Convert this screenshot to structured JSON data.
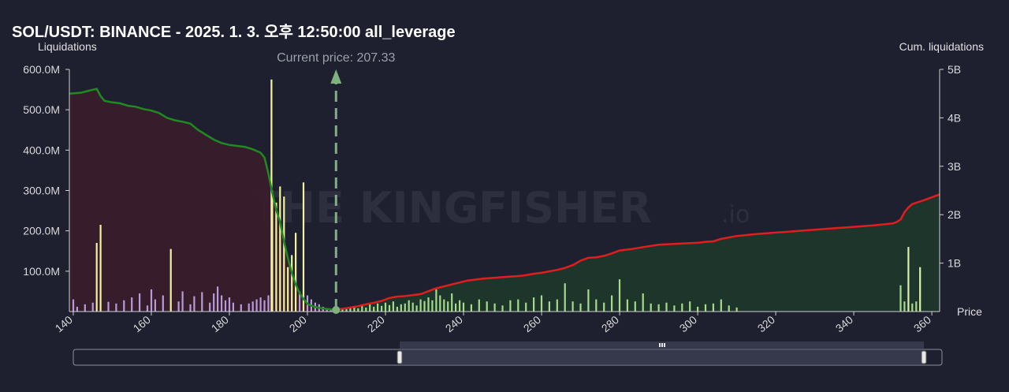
{
  "chart_data": {
    "type": "bar",
    "title": "SOL/USDT: BINANCE - 2025. 1. 3. 오후 12:50:00 all_leverage",
    "ylabel": "Liquidations",
    "y2label": "Cum. liquidations",
    "xlabel": "Price",
    "current_price_label": "Current price: 207.33",
    "current_price": 207.33,
    "xlim": [
      139,
      362
    ],
    "ylim": [
      0,
      600
    ],
    "y2lim": [
      0,
      5000
    ],
    "x_ticks": [
      140,
      160,
      180,
      200,
      220,
      240,
      260,
      280,
      300,
      320,
      340,
      360
    ],
    "y_ticks": [
      {
        "value": 100,
        "label": "100.0M"
      },
      {
        "value": 200,
        "label": "200.0M"
      },
      {
        "value": 300,
        "label": "300.0M"
      },
      {
        "value": 400,
        "label": "400.0M"
      },
      {
        "value": 500,
        "label": "500.0M"
      },
      {
        "value": 600,
        "label": "600.0M"
      }
    ],
    "y2_ticks": [
      {
        "value": 1000,
        "label": "1B"
      },
      {
        "value": 2000,
        "label": "2B"
      },
      {
        "value": 3000,
        "label": "3B"
      },
      {
        "value": 4000,
        "label": "4B"
      },
      {
        "value": 5000,
        "label": "5B"
      }
    ],
    "watermark_main": "THE KINGFISHER",
    "watermark_suffix": ".io",
    "colors": {
      "background": "#1e2030",
      "short_bars": "#b79bd8",
      "short_bars_tall": "#f1f3a0",
      "long_bars": "#a6d98a",
      "long_bars_tall": "#d8f0a8",
      "cum_left_line": "#1f8a1f",
      "cum_left_fill": "#3a1d2b",
      "cum_right_line": "#e01e1e",
      "cum_right_fill": "#1f3a2a",
      "current_price": "#7fb07f"
    },
    "series": [
      {
        "name": "Liquidations (below price)",
        "x": [
          140,
          141,
          143,
          145,
          146,
          147,
          149,
          151,
          153,
          155,
          157,
          159,
          160,
          161,
          163,
          165,
          167,
          168,
          170,
          171,
          173,
          175,
          176,
          177,
          178,
          179,
          180,
          181,
          183,
          185,
          186,
          187,
          188,
          189,
          190,
          190.8,
          191,
          192,
          193,
          194,
          195,
          196,
          197,
          198,
          199,
          200,
          201,
          202,
          203,
          204,
          205,
          206
        ],
        "values": [
          30,
          12,
          18,
          22,
          170,
          215,
          24,
          20,
          28,
          35,
          45,
          15,
          55,
          30,
          40,
          155,
          25,
          50,
          18,
          38,
          48,
          22,
          45,
          62,
          40,
          28,
          35,
          22,
          18,
          20,
          25,
          30,
          35,
          28,
          40,
          575,
          300,
          270,
          310,
          285,
          110,
          140,
          195,
          50,
          320,
          40,
          30,
          22,
          18,
          12,
          8,
          5
        ]
      },
      {
        "name": "Liquidations (above price)",
        "x": [
          208,
          209,
          210,
          211,
          212,
          213,
          214,
          215,
          216,
          217,
          218,
          219,
          220,
          221,
          222,
          223,
          224,
          225,
          226,
          227,
          228,
          229,
          230,
          231,
          232,
          233,
          234,
          235,
          236,
          237,
          238,
          239,
          240,
          242,
          244,
          246,
          248,
          250,
          252,
          254,
          256,
          258,
          260,
          262,
          264,
          266,
          268,
          270,
          272,
          274,
          276,
          278,
          280,
          282,
          284,
          286,
          288,
          290,
          292,
          294,
          296,
          298,
          300,
          302,
          304,
          306,
          308,
          310,
          352,
          353,
          354,
          355,
          356,
          357
        ],
        "values": [
          5,
          8,
          6,
          10,
          12,
          8,
          15,
          10,
          18,
          12,
          20,
          14,
          22,
          16,
          25,
          12,
          18,
          20,
          28,
          22,
          15,
          30,
          26,
          35,
          28,
          55,
          40,
          30,
          25,
          45,
          20,
          28,
          22,
          18,
          30,
          25,
          20,
          15,
          28,
          30,
          22,
          35,
          40,
          25,
          30,
          70,
          25,
          20,
          55,
          30,
          22,
          40,
          80,
          30,
          25,
          45,
          20,
          18,
          22,
          15,
          20,
          25,
          12,
          18,
          20,
          30,
          15,
          10,
          65,
          25,
          160,
          20,
          25,
          110
        ]
      },
      {
        "name": "Cum. liquidations (below price)",
        "x": [
          139,
          142,
          144,
          145,
          146,
          147,
          148,
          150,
          152,
          154,
          156,
          158,
          160,
          162,
          164,
          166,
          168,
          170,
          172,
          174,
          176,
          178,
          180,
          182,
          184,
          186,
          188,
          189,
          190,
          191,
          192,
          193,
          194,
          195,
          196,
          197,
          198,
          199,
          200,
          201,
          202,
          203,
          204,
          205,
          206,
          207.33
        ],
        "values": [
          4500,
          4520,
          4560,
          4580,
          4600,
          4450,
          4350,
          4320,
          4300,
          4250,
          4230,
          4180,
          4150,
          4100,
          4000,
          3950,
          3920,
          3880,
          3750,
          3650,
          3550,
          3480,
          3440,
          3420,
          3400,
          3350,
          3280,
          3180,
          2850,
          2450,
          2100,
          1850,
          1450,
          1100,
          800,
          560,
          380,
          260,
          160,
          120,
          95,
          75,
          65,
          55,
          45,
          40
        ]
      },
      {
        "name": "Cum. liquidations (above price)",
        "x": [
          207.33,
          210,
          213,
          215,
          217,
          219,
          221,
          223,
          225,
          227,
          229,
          231,
          233,
          235,
          237,
          239,
          241,
          245,
          250,
          255,
          258,
          260,
          262,
          264,
          266,
          268,
          270,
          272,
          274,
          276,
          278,
          280,
          283,
          286,
          290,
          295,
          300,
          302,
          304,
          306,
          310,
          315,
          320,
          325,
          330,
          335,
          340,
          345,
          350,
          351,
          352,
          353,
          354,
          355,
          358,
          362
        ],
        "values": [
          40,
          70,
          110,
          150,
          180,
          220,
          280,
          310,
          320,
          340,
          360,
          420,
          480,
          520,
          560,
          600,
          640,
          680,
          710,
          740,
          780,
          800,
          830,
          860,
          900,
          960,
          1050,
          1110,
          1120,
          1150,
          1200,
          1260,
          1290,
          1330,
          1380,
          1400,
          1420,
          1440,
          1450,
          1500,
          1560,
          1600,
          1630,
          1660,
          1690,
          1720,
          1750,
          1780,
          1820,
          1850,
          1900,
          2050,
          2150,
          2220,
          2300,
          2420
        ]
      }
    ]
  },
  "navigator": {
    "handle_grip_icon": "grip-icon",
    "range": [
      206,
      362
    ]
  }
}
